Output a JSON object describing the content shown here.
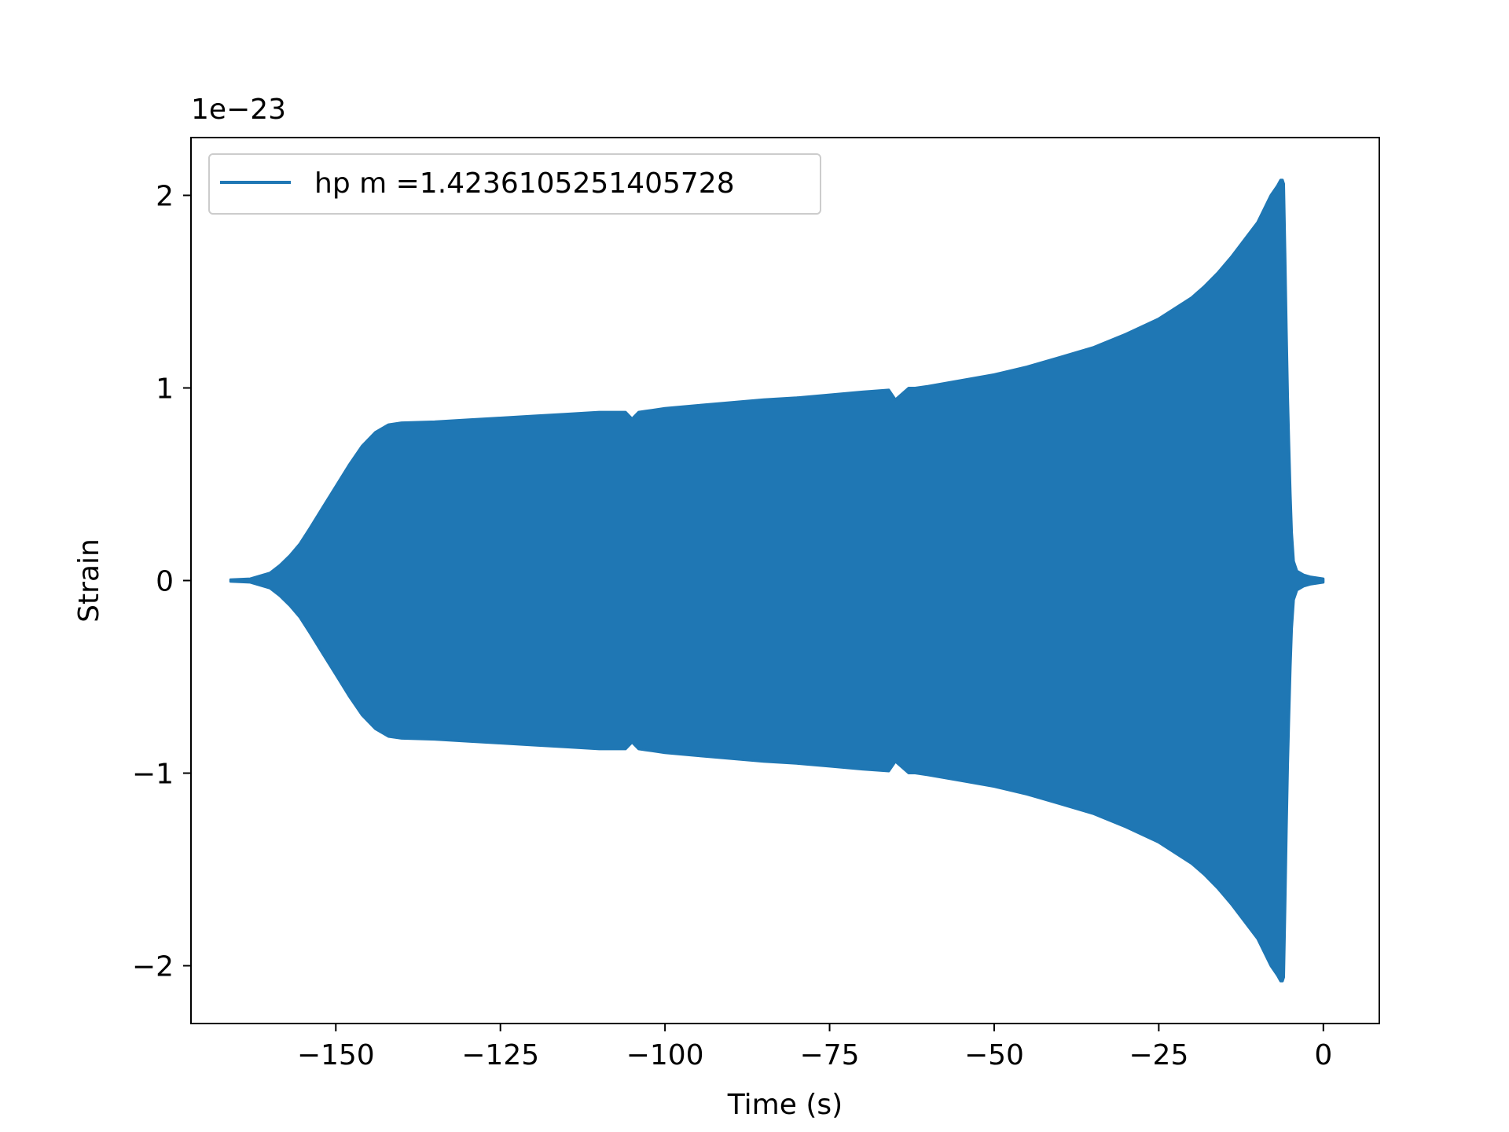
{
  "chart_data": {
    "type": "line",
    "title": "",
    "xlabel": "Time (s)",
    "ylabel": "Strain",
    "offset_text": "1e−23",
    "xlim": [
      -172,
      8.5
    ],
    "ylim": [
      -2.3,
      2.3
    ],
    "xticks": [
      {
        "value": -150,
        "label": "−150"
      },
      {
        "value": -125,
        "label": "−125"
      },
      {
        "value": -100,
        "label": "−100"
      },
      {
        "value": -75,
        "label": "−75"
      },
      {
        "value": -50,
        "label": "−50"
      },
      {
        "value": -25,
        "label": "−25"
      },
      {
        "value": 0,
        "label": "0"
      }
    ],
    "yticks": [
      {
        "value": 2,
        "label": "2"
      },
      {
        "value": 1,
        "label": "1"
      },
      {
        "value": 0,
        "label": "0"
      },
      {
        "value": -1,
        "label": "−1"
      },
      {
        "value": -2,
        "label": "−2"
      }
    ],
    "grid": false,
    "legend_position": "top-left",
    "series": [
      {
        "name": "hp m =1.4236105251405728",
        "color": "#1f77b4",
        "envelope": {
          "x": [
            -166,
            -163,
            -160,
            -158.5,
            -157,
            -155.5,
            -154,
            -152,
            -150,
            -148,
            -146,
            -144,
            -142,
            -140,
            -135,
            -130,
            -125,
            -120,
            -115,
            -110,
            -106,
            -105,
            -104,
            -103,
            -102,
            -100,
            -95,
            -90,
            -85,
            -80,
            -75,
            -70,
            -66,
            -65,
            -64,
            -63,
            -62,
            -60,
            -55,
            -50,
            -45,
            -40,
            -35,
            -30,
            -25,
            -20,
            -18,
            -16,
            -14,
            -12,
            -10,
            -9,
            -8,
            -7,
            -6.5,
            -6.2,
            -6,
            -5.8,
            -5.6,
            -5.4,
            -5.2,
            -5,
            -4.8,
            -4.5,
            -4,
            -3,
            -2,
            -1,
            0
          ],
          "amplitude": [
            0.005,
            0.01,
            0.04,
            0.08,
            0.13,
            0.19,
            0.27,
            0.38,
            0.49,
            0.6,
            0.7,
            0.77,
            0.81,
            0.82,
            0.825,
            0.835,
            0.845,
            0.855,
            0.865,
            0.875,
            0.875,
            0.84,
            0.875,
            0.88,
            0.885,
            0.895,
            0.91,
            0.925,
            0.94,
            0.95,
            0.965,
            0.98,
            0.99,
            0.94,
            0.97,
            1.0,
            1.0,
            1.01,
            1.04,
            1.07,
            1.11,
            1.16,
            1.21,
            1.28,
            1.36,
            1.47,
            1.53,
            1.6,
            1.68,
            1.77,
            1.86,
            1.93,
            2.0,
            2.05,
            2.08,
            2.08,
            2.06,
            1.7,
            1.3,
            0.95,
            0.7,
            0.45,
            0.25,
            0.1,
            0.05,
            0.03,
            0.02,
            0.015,
            0.01
          ]
        }
      }
    ]
  }
}
